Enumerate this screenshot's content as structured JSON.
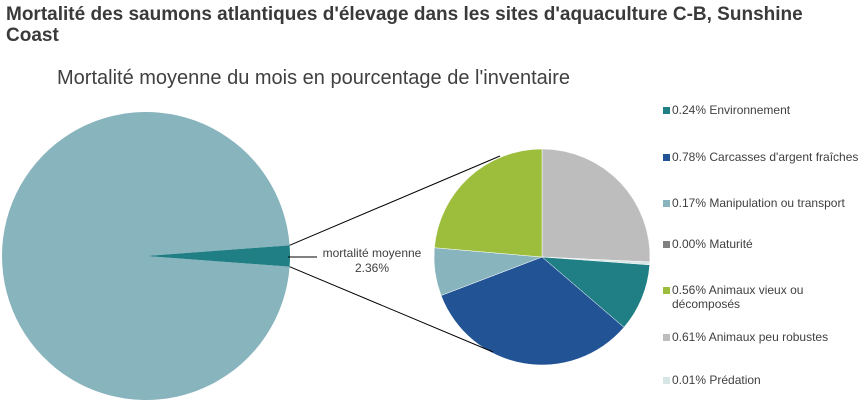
{
  "title": "Mortalité des saumons atlantiques d'élevage dans les sites d'aquaculture C-B, Sunshine Coast",
  "chart_data": {
    "type": "pie",
    "title": "Mortalité moyenne du mois en pourcentage de l'inventaire",
    "main_pie": {
      "slices": [
        {
          "value": 97.64,
          "color": "#88b4bd"
        },
        {
          "value": 2.36,
          "color": "#1f7f85",
          "label": "mortalité moyenne",
          "value_label": "2.36%"
        }
      ]
    },
    "sub_pie": {
      "slices": [
        {
          "name": "Animaux peu robustes",
          "value": 0.61,
          "label": "0.61% Animaux peu robustes",
          "color": "#bdbdbd"
        },
        {
          "name": "Prédation",
          "value": 0.01,
          "label": "0.01% Prédation",
          "color": "#d6e6e6"
        },
        {
          "name": "Environnement",
          "value": 0.24,
          "label": "0.24% Environnement",
          "color": "#1f7f85"
        },
        {
          "name": "Carcasses d'argent fraîches",
          "value": 0.78,
          "label": "0.78% Carcasses d'argent fraîches",
          "color": "#225395"
        },
        {
          "name": "Manipulation ou transport",
          "value": 0.17,
          "label": "0.17% Manipulation ou transport",
          "color": "#88b4bd"
        },
        {
          "name": "Maturité",
          "value": 0.0,
          "label": "0.00% Maturité",
          "color": "#808080"
        },
        {
          "name": "Animaux vieux ou décomposés",
          "value": 0.56,
          "label": "0.56% Animaux vieux ou décomposés",
          "color": "#9dbe3c"
        }
      ]
    },
    "legend": {
      "placement": "right",
      "order": [
        "Environnement",
        "Carcasses d'argent fraîches",
        "Manipulation ou transport",
        "Maturité",
        "Animaux vieux ou décomposés",
        "Animaux peu robustes",
        "Prédation"
      ]
    }
  }
}
